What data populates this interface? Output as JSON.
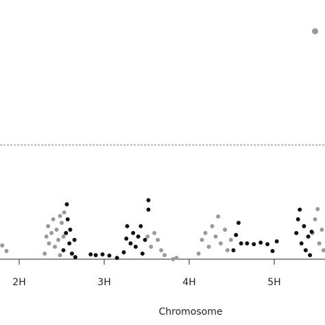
{
  "chart_data": {
    "type": "manhattan",
    "xlabel": "Chromosome",
    "xlim": [
      1.774,
      5.597
    ],
    "xticks": [
      {
        "value": 2,
        "label": "2H"
      },
      {
        "value": 3,
        "label": "3H"
      },
      {
        "value": 4,
        "label": "4H"
      },
      {
        "value": 5,
        "label": "5H"
      }
    ],
    "ylim": [
      0,
      10.2
    ],
    "threshold": 4.5,
    "series": [
      {
        "color": "#999999",
        "x": [
          1.8,
          1.85,
          2.3,
          2.32,
          2.34,
          2.35,
          2.38,
          2.4,
          2.42,
          2.44,
          2.46,
          2.48,
          2.48,
          2.5,
          2.52,
          2.53,
          3.51,
          3.55,
          3.59,
          3.63,
          3.67,
          3.71,
          3.81,
          3.85,
          4.11,
          4.15,
          4.19,
          4.23,
          4.27,
          4.31,
          4.34,
          4.37,
          4.42,
          4.45,
          4.49,
          5.45,
          5.48,
          5.51,
          5.53,
          5.56,
          5.58,
          5.48
        ],
        "values": [
          0.54,
          0.32,
          0.22,
          0.89,
          1.3,
          0.62,
          1.03,
          1.57,
          0.49,
          1.16,
          0.76,
          1.7,
          0.16,
          1.43,
          0.89,
          1.84,
          0.89,
          0.49,
          1.03,
          0.76,
          0.35,
          0.16,
          0,
          0.05,
          0.22,
          0.76,
          1.03,
          0.49,
          1.3,
          0.89,
          1.68,
          0.62,
          1.16,
          0.35,
          0.76,
          1.03,
          1.57,
          1.97,
          0.62,
          1.16,
          0.35,
          8.97
        ]
      },
      {
        "color": "#111111",
        "x": [
          2.52,
          2.55,
          2.56,
          2.57,
          2.59,
          2.6,
          2.62,
          2.65,
          2.66,
          2.84,
          2.9,
          2.98,
          3.06,
          3.15,
          3.23,
          3.26,
          3.27,
          3.31,
          3.34,
          3.37,
          3.4,
          3.43,
          3.45,
          3.48,
          3.52,
          3.52,
          4.52,
          4.55,
          4.58,
          4.61,
          4.68,
          4.76,
          4.84,
          4.92,
          4.98,
          5.03,
          5.26,
          5.28,
          5.3,
          5.32,
          5.35,
          5.37,
          5.4,
          5.42,
          5.44
        ],
        "values": [
          0.35,
          1.03,
          2.16,
          1.57,
          0.62,
          1.16,
          0.22,
          0.76,
          0.08,
          0.19,
          0.16,
          0.19,
          0.14,
          0.05,
          0.27,
          0.81,
          1.3,
          0.62,
          1.03,
          0.49,
          0.89,
          1.3,
          0.22,
          0.76,
          2.32,
          1.95,
          0.35,
          0.95,
          1.43,
          0.62,
          0.62,
          0.59,
          0.65,
          0.59,
          0.32,
          0.7,
          1.03,
          1.57,
          1.95,
          0.62,
          1.3,
          0.35,
          0.89,
          0.16,
          1.08
        ]
      }
    ]
  }
}
